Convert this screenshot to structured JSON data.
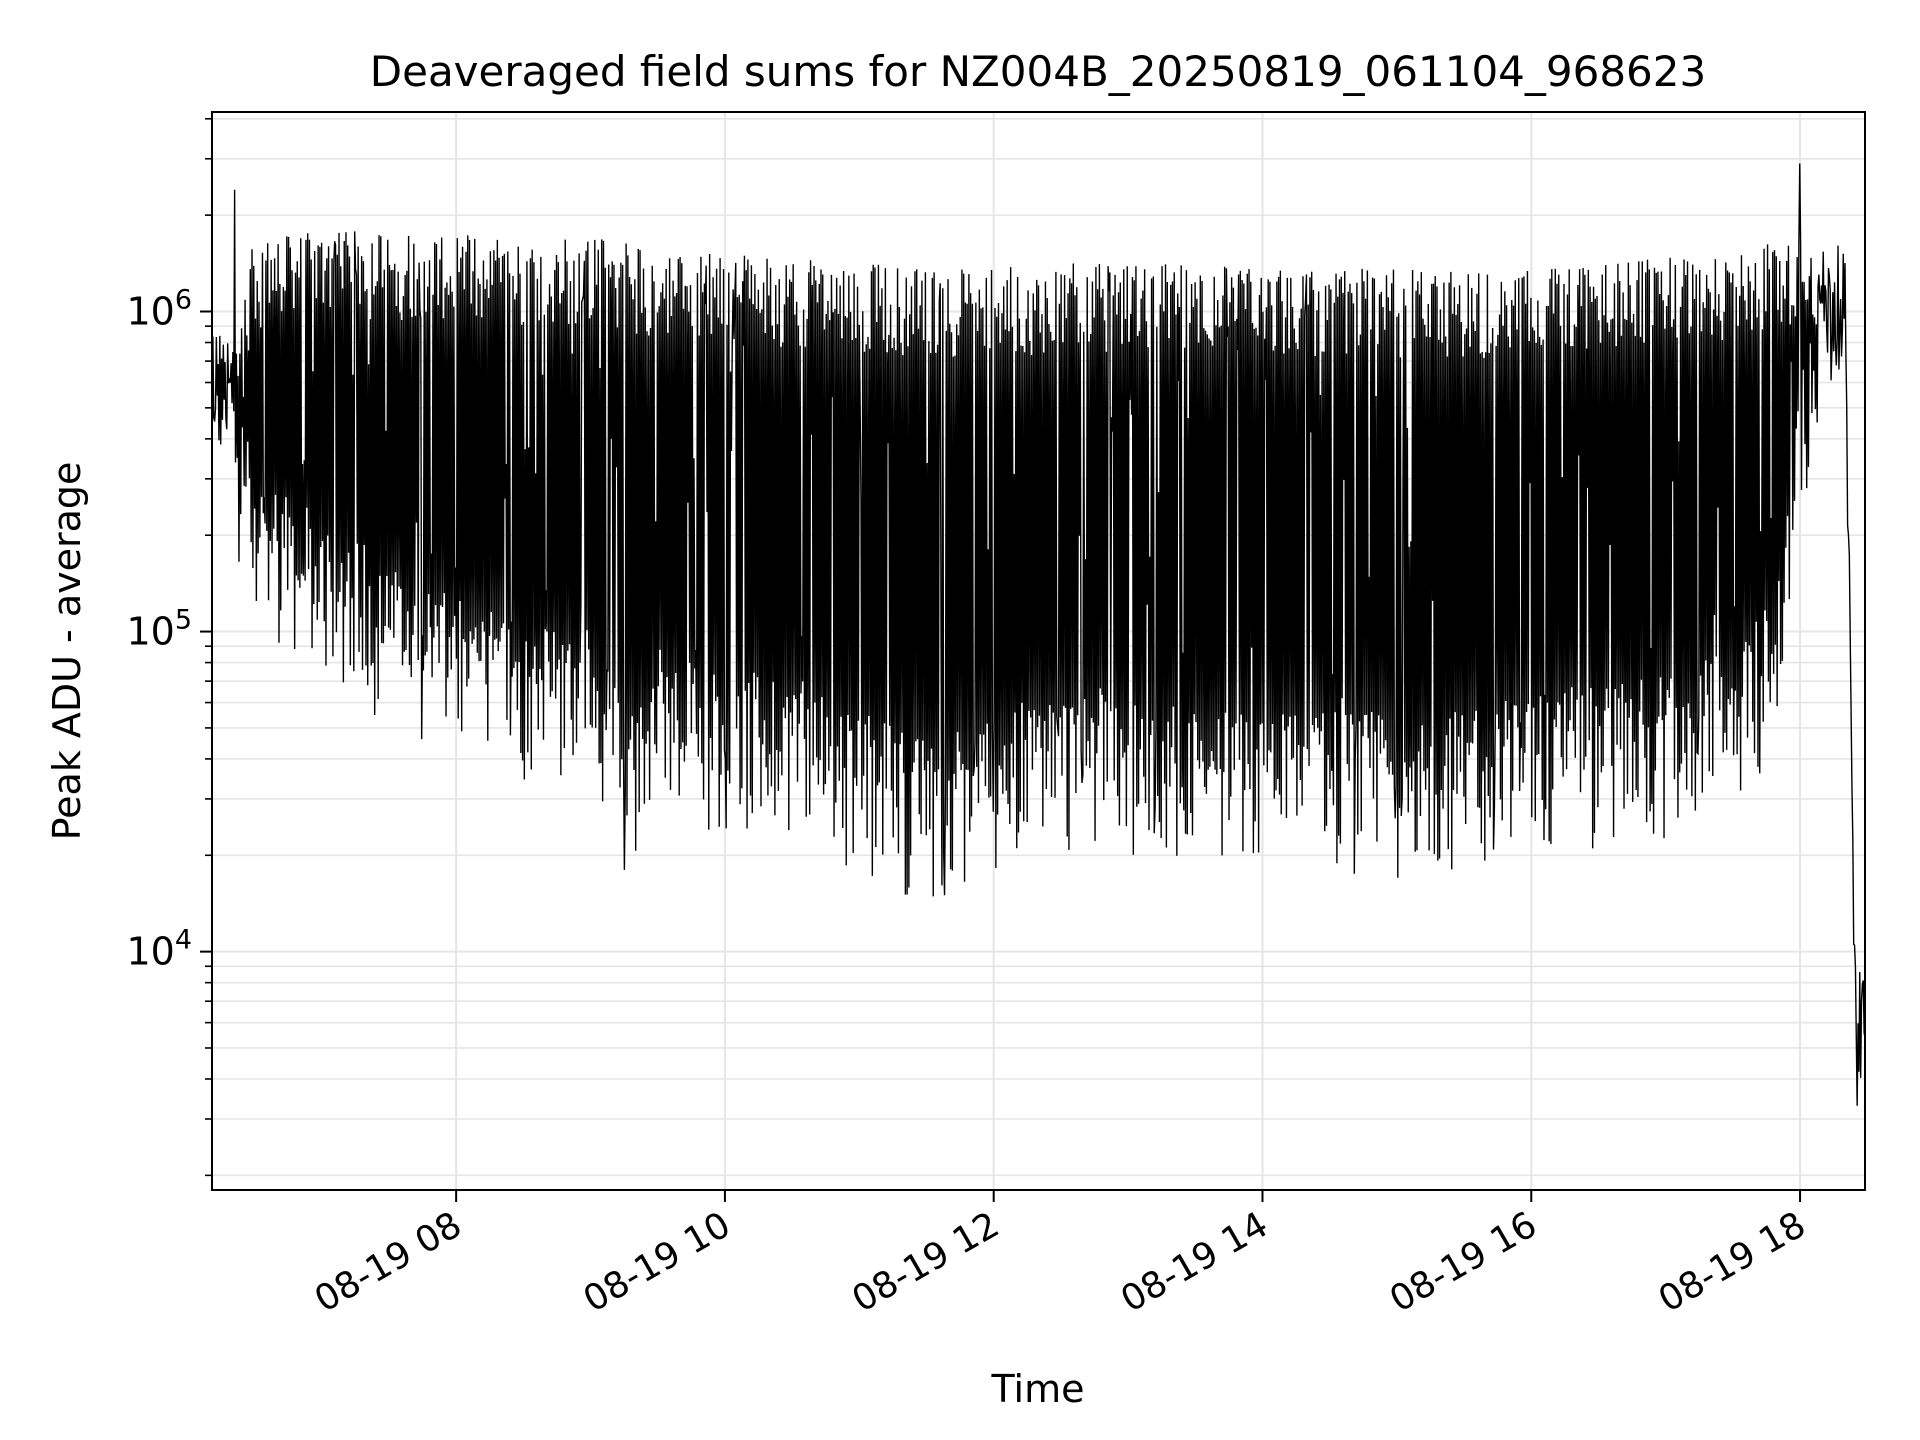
{
  "chart_data": {
    "type": "line",
    "title": "Deaveraged field sums for NZ004B_20250819_061104_968623",
    "xlabel": "Time",
    "ylabel": "Peak ADU - average",
    "yscale": "log",
    "grid": true,
    "line_color": "#000000",
    "grid_color": "#e5e5e5",
    "xlim": [
      "08-19 06:11",
      "08-19 18:29"
    ],
    "ylim": [
      1800,
      4200000
    ],
    "x_ticks": [
      "08-19 08",
      "08-19 10",
      "08-19 12",
      "08-19 14",
      "08-19 16",
      "08-19 18"
    ],
    "y_ticks": [
      {
        "base": "10",
        "exp": "4",
        "value": 10000
      },
      {
        "base": "10",
        "exp": "5",
        "value": 100000
      },
      {
        "base": "10",
        "exp": "6",
        "value": 1000000
      }
    ],
    "series": [
      {
        "x": [
          "08-19 06:11",
          "08-19 06:30",
          "08-19 07:00",
          "08-19 07:30",
          "08-19 08:00",
          "08-19 08:30",
          "08-19 09:00",
          "08-19 09:15",
          "08-19 09:30",
          "08-19 10:00",
          "08-19 10:30",
          "08-19 11:00",
          "08-19 11:30",
          "08-19 12:00",
          "08-19 12:30",
          "08-19 13:00",
          "08-19 13:30",
          "08-19 14:00",
          "08-19 14:30",
          "08-19 15:00",
          "08-19 15:30",
          "08-19 16:00",
          "08-19 16:30",
          "08-19 17:00",
          "08-19 17:30",
          "08-19 17:50",
          "08-19 18:00",
          "08-19 18:10",
          "08-19 18:20",
          "08-19 18:25",
          "08-19 18:29"
        ],
        "upper": [
          500000,
          1600000,
          1700000,
          1700000,
          1700000,
          1600000,
          1650000,
          1600000,
          1500000,
          1450000,
          1400000,
          1350000,
          1300000,
          1300000,
          1350000,
          1350000,
          1350000,
          1300000,
          1300000,
          1300000,
          1300000,
          1300000,
          1350000,
          1400000,
          1450000,
          1600000,
          1700000,
          1500000,
          1100000,
          10000,
          8000
        ],
        "lower": [
          500000,
          150000,
          100000,
          70000,
          55000,
          48000,
          45000,
          25000,
          40000,
          32000,
          33000,
          25000,
          20000,
          25000,
          28000,
          28000,
          25000,
          24000,
          25000,
          24000,
          25000,
          28000,
          30000,
          32000,
          38000,
          60000,
          300000,
          700000,
          700000,
          3000,
          5000
        ]
      }
    ],
    "annotations": [
      {
        "x": "08-19 06:21",
        "y": 2400000,
        "kind": "spike"
      },
      {
        "x": "08-19 09:15",
        "y": 18000,
        "kind": "dip"
      },
      {
        "x": "08-19 11:38",
        "y": 15000,
        "kind": "dip"
      },
      {
        "x": "08-19 18:00",
        "y": 2900000,
        "kind": "spike"
      }
    ]
  }
}
